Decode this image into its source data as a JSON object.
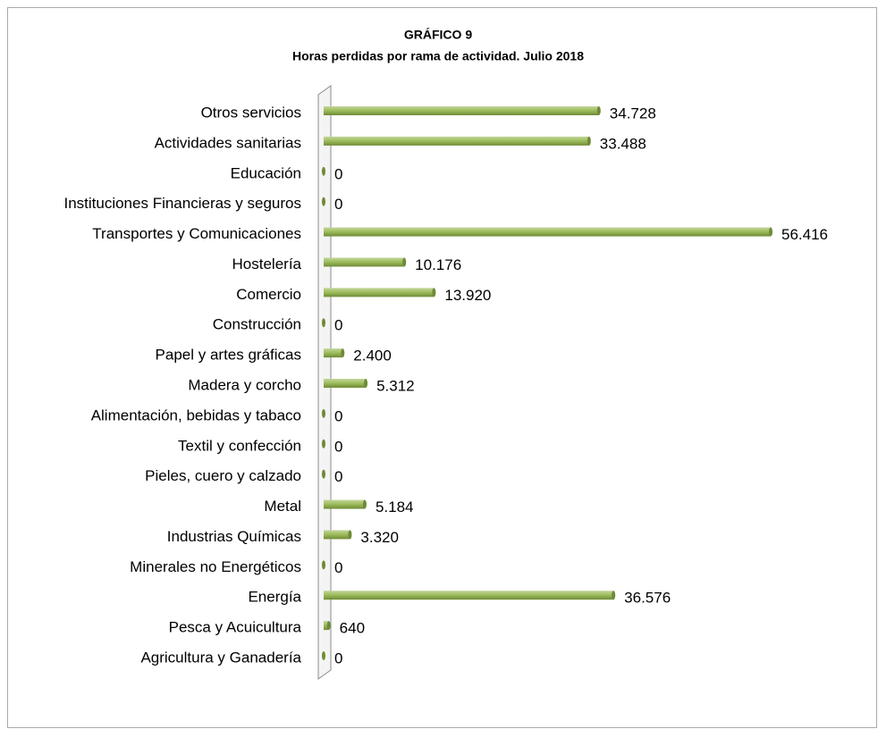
{
  "chart_data": {
    "type": "bar",
    "orientation": "horizontal",
    "title": "GRÁFICO 9",
    "subtitle": "Horas perdidas por rama de actividad. Julio 2018",
    "categories": [
      "Otros servicios",
      "Actividades sanitarias",
      "Educación",
      "Instituciones Financieras y seguros",
      "Transportes y Comunicaciones",
      "Hostelería",
      "Comercio",
      "Construcción",
      "Papel y artes gráficas",
      "Madera y corcho",
      "Alimentación, bebidas y tabaco",
      "Textil y confección",
      "Pieles, cuero y calzado",
      "Metal",
      "Industrias Químicas",
      "Minerales no Energéticos",
      "Energía",
      "Pesca y Acuicultura",
      "Agricultura y Ganadería"
    ],
    "values": [
      34728,
      33488,
      0,
      0,
      56416,
      10176,
      13920,
      0,
      2400,
      5312,
      0,
      0,
      0,
      5184,
      3320,
      0,
      36576,
      640,
      0
    ],
    "value_labels": [
      "34.728",
      "33.488",
      "0",
      "0",
      "56.416",
      "10.176",
      "13.920",
      "0",
      "2.400",
      "5.312",
      "0",
      "0",
      "0",
      "5.184",
      "3.320",
      "0",
      "36.576",
      "640",
      "0"
    ],
    "color": "#9bbb59"
  }
}
